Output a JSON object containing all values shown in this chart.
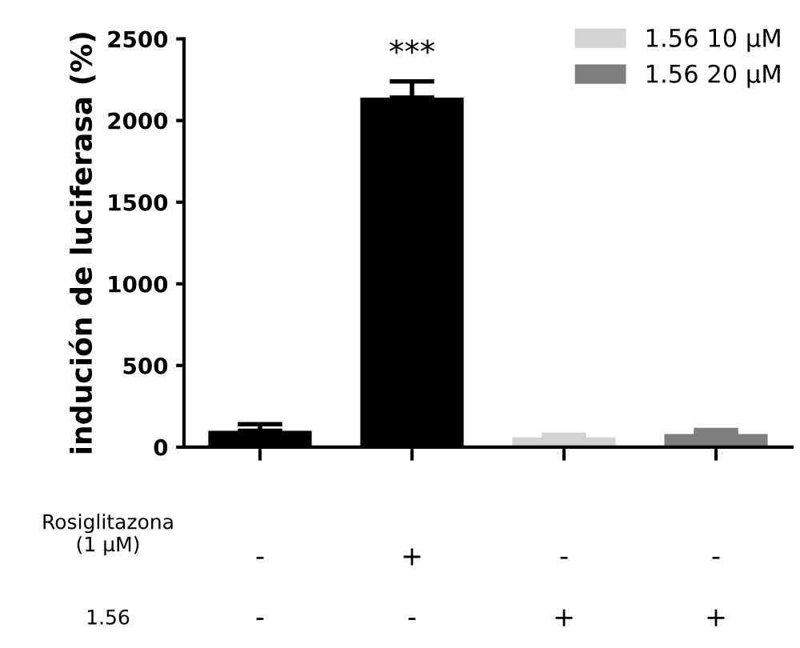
{
  "chart_data": {
    "type": "bar",
    "ylabel": "indución de luciferasa (%)",
    "categories": [
      "-",
      "+",
      "-",
      "-"
    ],
    "series": [
      {
        "color": "#000000",
        "values": [
          100,
          2140,
          null,
          null
        ],
        "errors": [
          40,
          100,
          null,
          null
        ]
      },
      {
        "name": "1.56 10 μM",
        "color": "#d3d3d3",
        "values": [
          null,
          null,
          60,
          null
        ],
        "errors": [
          null,
          null,
          15,
          null
        ]
      },
      {
        "name": "1.56 20 μM",
        "color": "#7f7f7f",
        "values": [
          null,
          null,
          null,
          80
        ],
        "errors": [
          null,
          null,
          null,
          25
        ]
      }
    ],
    "ylim": [
      0,
      2500
    ],
    "yticks": [
      0,
      500,
      1000,
      1500,
      2000,
      2500
    ],
    "grid": false,
    "legend": "top right",
    "annotations": [
      "***",
      "Rosiglitazona\n(1 μM)",
      "1.56",
      "-",
      "-",
      "+",
      "+"
    ]
  }
}
